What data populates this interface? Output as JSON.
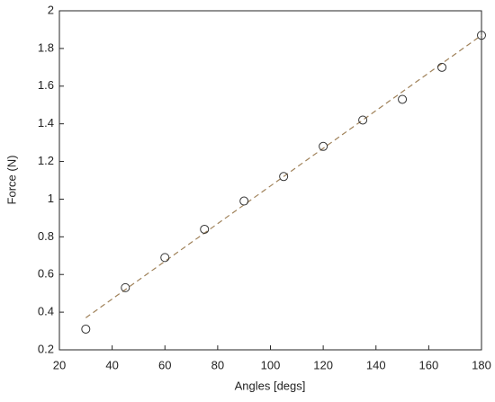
{
  "chart_data": {
    "type": "scatter",
    "x_label": "Angles [degs]",
    "y_label": "Force (N)",
    "series": [
      {
        "color": "#333333",
        "x": [
          30,
          45,
          60,
          75,
          90,
          105,
          120,
          135,
          150,
          165,
          180
        ],
        "values": [
          0.31,
          0.53,
          0.69,
          0.84,
          0.99,
          1.12,
          1.28,
          1.42,
          1.53,
          1.7,
          1.87
        ]
      }
    ],
    "fit": {
      "color": "#a0825a",
      "x": [
        30,
        180
      ],
      "values": [
        0.37,
        1.87
      ]
    },
    "xlim": [
      20,
      180
    ],
    "xticks": [
      20,
      40,
      60,
      80,
      100,
      120,
      140,
      160,
      180
    ],
    "ylim": [
      0.2,
      2
    ],
    "yticks": [
      0.2,
      0.4,
      0.6,
      0.8,
      1,
      1.2,
      1.4,
      1.6,
      1.8,
      2
    ],
    "grid": false
  }
}
